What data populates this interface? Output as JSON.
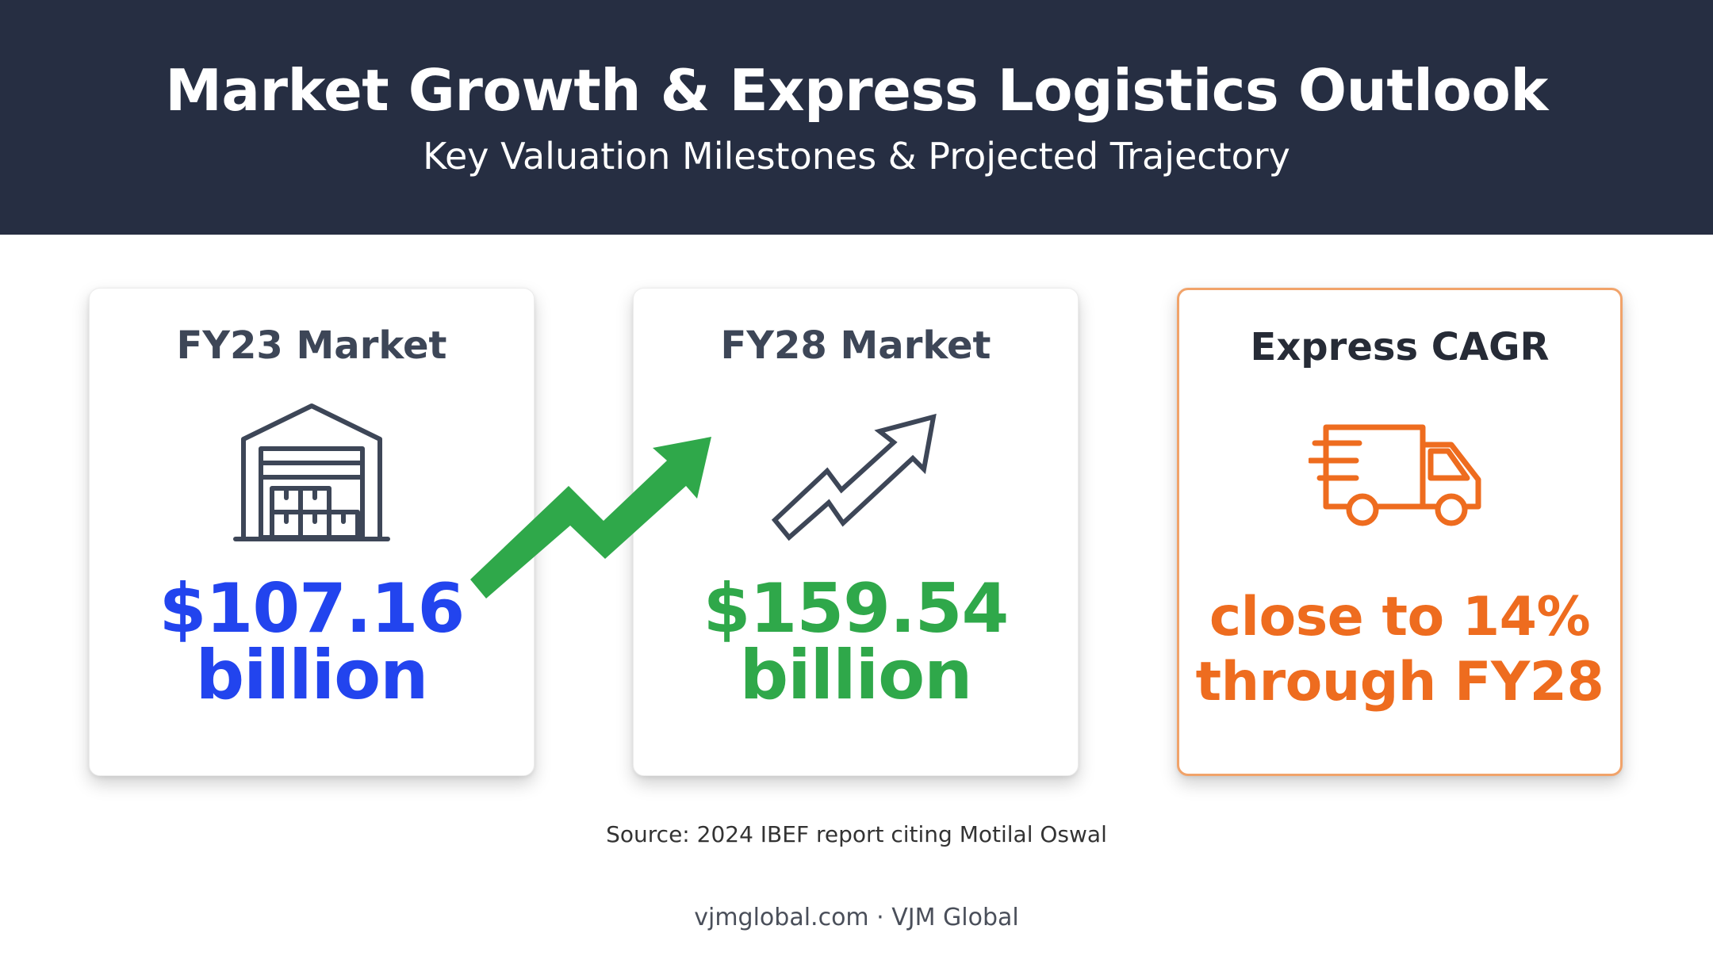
{
  "header": {
    "title": "Market Growth & Express Logistics Outlook",
    "subtitle": "Key Valuation Milestones & Projected Trajectory",
    "background_color": "#262e42"
  },
  "cards": [
    {
      "title": "FY23 Market",
      "icon": "warehouse-icon",
      "value_line1": "$107.16",
      "value_line2": "billion",
      "value_color": "#2244ee"
    },
    {
      "title": "FY28 Market",
      "icon": "trend-up-arrow-icon",
      "value_line1": "$159.54",
      "value_line2": "billion",
      "value_color": "#2fa84a"
    },
    {
      "title": "Express CAGR",
      "icon": "delivery-truck-icon",
      "value_line1": "close to 14%",
      "value_line2": "through FY28",
      "value_color": "#ee6c1f",
      "border_color": "#f1a36a"
    }
  ],
  "growth_arrow": {
    "icon": "growth-arrow-icon",
    "color": "#2fa84a"
  },
  "source": "Source: 2024 IBEF report citing Motilal Oswal",
  "footer": "vjmglobal.com · VJM Global"
}
